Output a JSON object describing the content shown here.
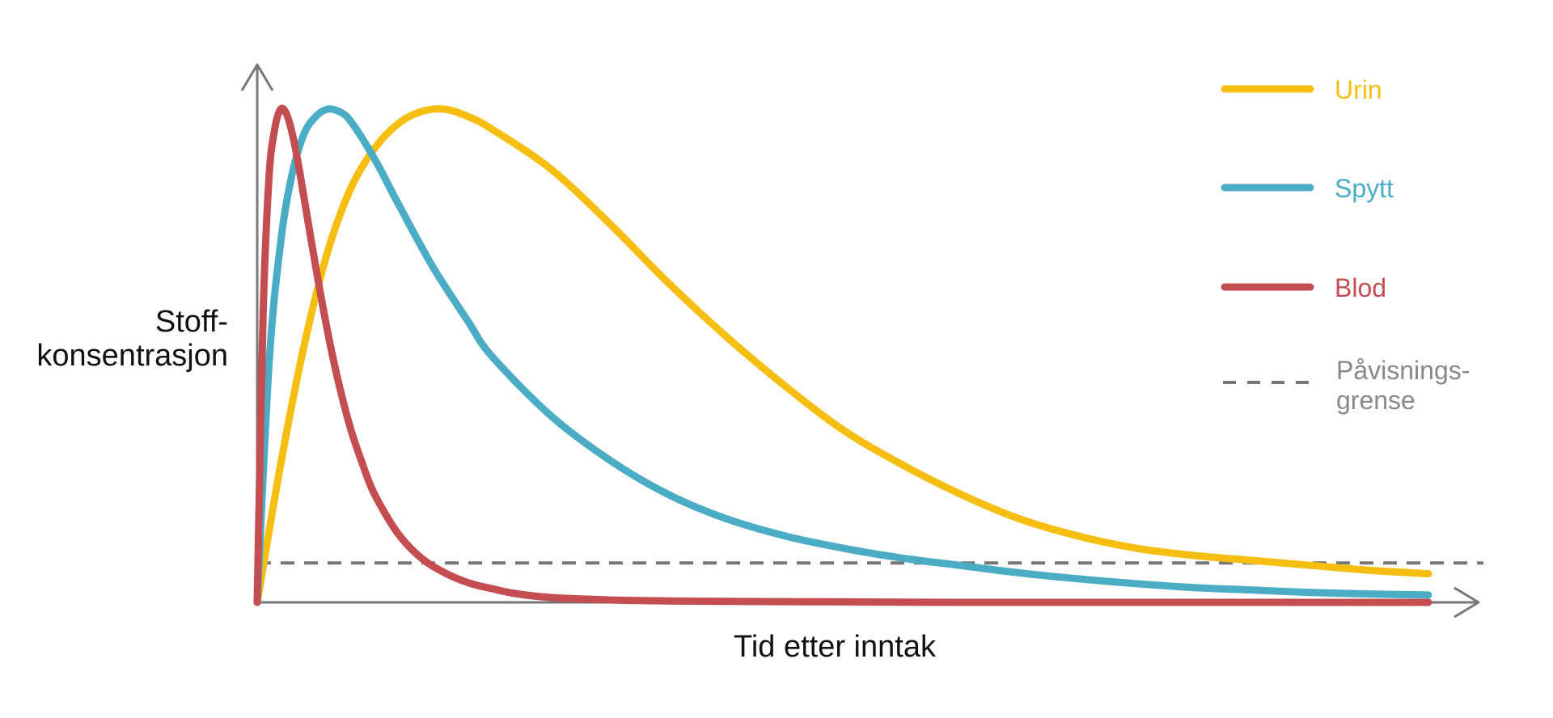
{
  "chart_data": {
    "type": "line",
    "ylabel": [
      "Stoff-",
      "konsentrasjon"
    ],
    "xlabel": "Tid etter inntak",
    "x_range": [
      0,
      100
    ],
    "y_range": [
      0,
      100
    ],
    "ticks": "none",
    "grid": false,
    "legend_position": "top-right",
    "colors": {
      "urin": "#F7BE12",
      "spytt": "#4AADC5",
      "blod": "#C34D50",
      "detection": "#777777",
      "axis": "#777777"
    },
    "series": [
      {
        "key": "urin",
        "name": "Urin",
        "x": [
          0,
          2,
          4,
          6,
          8,
          10,
          12,
          14,
          16,
          18,
          20,
          25,
          30,
          35,
          40,
          45,
          50,
          55,
          60,
          65,
          70,
          75,
          80,
          85,
          90,
          95,
          100
        ],
        "y": [
          0,
          28,
          52,
          71,
          84,
          92,
          97,
          99.5,
          100,
          98.5,
          96,
          88,
          77,
          65,
          54,
          44,
          35,
          28,
          22,
          17,
          13.5,
          11,
          9.5,
          8.5,
          7.5,
          6.5,
          5.8
        ]
      },
      {
        "key": "spytt",
        "name": "Spytt",
        "x": [
          0,
          1,
          2,
          3,
          4,
          5,
          6,
          7,
          8,
          10,
          12,
          15,
          18,
          20,
          25,
          30,
          35,
          40,
          45,
          50,
          55,
          60,
          65,
          70,
          75,
          80,
          85,
          90,
          95,
          100
        ],
        "y": [
          0,
          48,
          73,
          87,
          95,
          98.5,
          100,
          99.5,
          97.5,
          90,
          81,
          68,
          57,
          50,
          38,
          29,
          22,
          17,
          13.5,
          11,
          9,
          7.5,
          6,
          4.8,
          3.8,
          3,
          2.5,
          2,
          1.7,
          1.5
        ]
      },
      {
        "key": "blod",
        "name": "Blod",
        "x": [
          0,
          0.5,
          1,
          1.5,
          2,
          2.5,
          3,
          3.5,
          4,
          5,
          6,
          7,
          8,
          9,
          10,
          12,
          14,
          16,
          18,
          20,
          22,
          25,
          30,
          35,
          40,
          50,
          60,
          70,
          80,
          90,
          100
        ],
        "y": [
          0,
          58,
          86,
          96,
          100,
          99,
          95,
          89,
          82,
          68,
          55,
          44,
          35,
          28,
          22,
          14,
          9,
          6,
          4,
          2.8,
          1.8,
          1,
          0.5,
          0.3,
          0.2,
          0.1,
          0,
          0,
          0,
          0,
          0
        ]
      }
    ],
    "detection_limit": {
      "name": "Påvisnings-\ngrense",
      "label_lines": [
        "Påvisnings-",
        "grense"
      ],
      "y": 8
    }
  }
}
